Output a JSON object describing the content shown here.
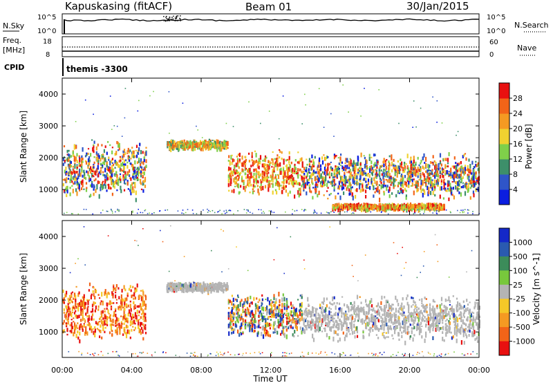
{
  "header": {
    "station": "Kapuskasing (fitACF)",
    "beam": "Beam 01",
    "date": "30/Jan/2015"
  },
  "top_panels": {
    "nsky_label": "N.Sky",
    "nsky_tick_top": "10^5",
    "nsky_tick_bottom": "10^0",
    "nsearch_tick_top": "10^5",
    "nsearch_tick_bottom": "10^0",
    "nsearch_label": "N.Search",
    "freq_label": "Freq.",
    "freq_unit": "[MHz]",
    "freq_tick_top": "18",
    "freq_tick_bottom": "8",
    "nave_tick_top": "60",
    "nave_tick_bottom": "0",
    "nave_label": "Nave",
    "cpid_label": "CPID",
    "cpid_value": "themis -3300"
  },
  "chart_data": [
    {
      "type": "heatmap",
      "name": "power",
      "ylabel": "Slant Range [km]",
      "xlabel": "",
      "x_ticks": [
        "00:00",
        "04:00",
        "08:00",
        "12:00",
        "16:00",
        "20:00",
        "00:00"
      ],
      "x_range_hours": [
        0,
        24
      ],
      "y_ticks": [
        1000,
        2000,
        3000,
        4000
      ],
      "ylim": [
        200,
        4500
      ],
      "colorbar_label": "Power [dB]",
      "colorbar_ticks": [
        "4",
        "8",
        "12",
        "16",
        "20",
        "24",
        "28"
      ],
      "colorbar_colors": [
        "#0b1ee0",
        "#2f55c8",
        "#3d8f6a",
        "#7fd04a",
        "#f0d230",
        "#f59a22",
        "#f26418",
        "#e81010"
      ],
      "echo_regions": [
        {
          "t": [
            0.0,
            4.8
          ],
          "r": [
            700,
            2600
          ],
          "level": "mixed"
        },
        {
          "t": [
            6.0,
            9.5
          ],
          "r": [
            2300,
            2600
          ],
          "level": "medium"
        },
        {
          "t": [
            9.5,
            13.8
          ],
          "r": [
            800,
            2300
          ],
          "level": "high"
        },
        {
          "t": [
            13.8,
            24.0
          ],
          "r": [
            700,
            2200
          ],
          "level": "mixed"
        },
        {
          "t": [
            15.5,
            22.0
          ],
          "r": [
            400,
            600
          ],
          "level": "high"
        }
      ]
    },
    {
      "type": "heatmap",
      "name": "velocity",
      "ylabel": "Slant Range [km]",
      "xlabel": "Time UT",
      "x_ticks": [
        "00:00",
        "04:00",
        "08:00",
        "12:00",
        "16:00",
        "20:00",
        "00:00"
      ],
      "x_range_hours": [
        0,
        24
      ],
      "y_ticks": [
        1000,
        2000,
        3000,
        4000
      ],
      "ylim": [
        200,
        4500
      ],
      "colorbar_label": "Velocity [m s^-1]",
      "colorbar_ticks": [
        "1000",
        "500",
        "100",
        "25",
        "-25",
        "-100",
        "-500",
        "-1000"
      ],
      "colorbar_colors": [
        "#1428c8",
        "#2a5ab0",
        "#3c8c5a",
        "#78c83c",
        "#b4b4b4",
        "#f5c828",
        "#f59a22",
        "#f26418",
        "#e81010"
      ],
      "echo_regions": [
        {
          "t": [
            0.0,
            4.8
          ],
          "r": [
            700,
            2600
          ],
          "level": "negative"
        },
        {
          "t": [
            6.0,
            9.5
          ],
          "r": [
            2300,
            2600
          ],
          "level": "ground"
        },
        {
          "t": [
            9.5,
            13.8
          ],
          "r": [
            800,
            2300
          ],
          "level": "mixed"
        },
        {
          "t": [
            13.8,
            24.0
          ],
          "r": [
            700,
            2200
          ],
          "level": "ground"
        }
      ]
    }
  ]
}
